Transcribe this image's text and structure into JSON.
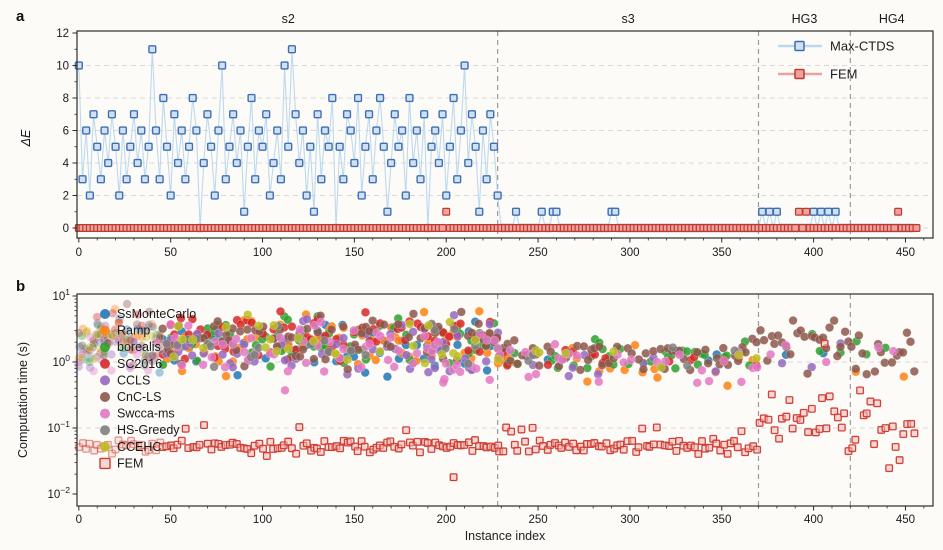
{
  "figure": {
    "panel_a_letter": "a",
    "panel_b_letter": "b",
    "xlabel": "Instance index"
  },
  "chart_data": [
    {
      "panel": "a",
      "type": "line",
      "ylabel": "ΔE",
      "xlim": [
        -1,
        465
      ],
      "ylim": [
        -0.6,
        12.4
      ],
      "xticks": [
        0,
        50,
        100,
        150,
        200,
        250,
        300,
        350,
        400,
        450
      ],
      "yticks": [
        0,
        2,
        4,
        6,
        8,
        10,
        12
      ],
      "grid": "horizontal-dashed",
      "sections": [
        {
          "label": "s2",
          "from": 0,
          "to": 228
        },
        {
          "label": "s3",
          "from": 228,
          "to": 370
        },
        {
          "label": "HG3",
          "from": 370,
          "to": 420
        },
        {
          "label": "HG4",
          "from": 420,
          "to": 465
        }
      ],
      "legend": {
        "position": "top-right",
        "items": [
          "Max-CTDS",
          "FEM"
        ]
      },
      "series": [
        {
          "name": "Max-CTDS",
          "marker": "square",
          "line_color": "#b9d7ee",
          "edge_color": "#3f6fb0",
          "fill_color": "#cfe1f3",
          "x_start": 0,
          "x_step": 2,
          "y": [
            10,
            3,
            6,
            2,
            7,
            5,
            3,
            6,
            4,
            7,
            5,
            2,
            6,
            3,
            5,
            7,
            4,
            6,
            3,
            5,
            11,
            6,
            3,
            8,
            5,
            2,
            7,
            4,
            6,
            3,
            5,
            8,
            6,
            0,
            4,
            7,
            5,
            2,
            6,
            10,
            3,
            5,
            7,
            4,
            6,
            1,
            5,
            8,
            3,
            6,
            5,
            7,
            2,
            4,
            6,
            3,
            10,
            5,
            11,
            7,
            4,
            6,
            2,
            5,
            1,
            7,
            3,
            6,
            5,
            8,
            0,
            5,
            3,
            7,
            6,
            4,
            8,
            2,
            5,
            7,
            3,
            6,
            8,
            5,
            1,
            4,
            7,
            5,
            6,
            2,
            8,
            4,
            6,
            3,
            7,
            0,
            5,
            6,
            4,
            7,
            2,
            5,
            8,
            3,
            6,
            10,
            4,
            7,
            5,
            1,
            6,
            3,
            7,
            5,
            2,
            0,
            0,
            0,
            0,
            1,
            0,
            0,
            0,
            0,
            0,
            0,
            1,
            0,
            0,
            1,
            1,
            0,
            0,
            0,
            0,
            0,
            0,
            0,
            0,
            0,
            0,
            0,
            0,
            0,
            0,
            1,
            1,
            0,
            0,
            0,
            0,
            0,
            0,
            0,
            0,
            0,
            0,
            0,
            0,
            0,
            0,
            0,
            0,
            0,
            0,
            0,
            0,
            0,
            0,
            0,
            0,
            0,
            0,
            0,
            0,
            0,
            0,
            0,
            0,
            0,
            0,
            0,
            0,
            0,
            0,
            0,
            1,
            0,
            1,
            0,
            1,
            0,
            0,
            0,
            0,
            0,
            0,
            0,
            0,
            0,
            1,
            0,
            1,
            0,
            1,
            0,
            1,
            0,
            0,
            0,
            0,
            0,
            0,
            0,
            0,
            0,
            0,
            0,
            0,
            0,
            0,
            0,
            0,
            0,
            0,
            0,
            0,
            0
          ]
        },
        {
          "name": "FEM",
          "marker": "square",
          "edge_color": "#c2382e",
          "fill_color": "#eba49d",
          "x_start": 0,
          "x_end": 456,
          "x_step": 2,
          "baseline": 0,
          "nonzero_points": [
            [
              200,
              1
            ],
            [
              392,
              1
            ],
            [
              396,
              1
            ],
            [
              446,
              1
            ]
          ]
        }
      ]
    },
    {
      "panel": "b",
      "type": "scatter",
      "ylabel": "Computation time (s)",
      "xlabel": "Instance index",
      "yscale": "log",
      "ylim_exp": [
        -2,
        1
      ],
      "ytick_exponents": [
        "1",
        "0",
        "−1",
        "−2"
      ],
      "xticks": [
        0,
        50,
        100,
        150,
        200,
        250,
        300,
        350,
        400,
        450
      ],
      "separators": [
        228,
        370,
        420
      ],
      "legend": {
        "position": "upper-left",
        "items": [
          "SsMonteCarlo",
          "Ramp",
          "borealis",
          "SC2016",
          "CCLS",
          "CnC-LS",
          "Swcca-ms",
          "HS-Greedy",
          "CCEHC",
          "FEM"
        ]
      },
      "series": [
        {
          "name": "SsMonteCarlo",
          "marker": "circle",
          "color": "#1f77b4",
          "x_step": 2,
          "clusters": [
            {
              "x0": 0,
              "x1": 228,
              "density": 0.65,
              "log10_center": 0.18,
              "log10_spread": 0.2
            },
            {
              "x0": 229,
              "x1": 370,
              "density": 0.08,
              "log10_center": 0.0,
              "log10_spread": 0.1
            },
            {
              "x0": 371,
              "x1": 420,
              "density": 0.02,
              "log10_center": 0.1,
              "log10_spread": 0.1
            },
            {
              "x0": 421,
              "x1": 456,
              "density": 0.03,
              "log10_center": 0.05,
              "log10_spread": 0.1
            }
          ]
        },
        {
          "name": "Ramp",
          "marker": "circle",
          "color": "#ff7f0e",
          "x_step": 2,
          "clusters": [
            {
              "x0": 0,
              "x1": 228,
              "density": 0.65,
              "log10_center": 0.3,
              "log10_spread": 0.22
            },
            {
              "x0": 229,
              "x1": 370,
              "density": 0.25,
              "log10_center": 0.03,
              "log10_spread": 0.14
            },
            {
              "x0": 371,
              "x1": 420,
              "density": 0.04,
              "log10_center": -0.05,
              "log10_spread": 0.25
            },
            {
              "x0": 421,
              "x1": 456,
              "density": 0.06,
              "log10_center": -0.25,
              "log10_spread": 0.25
            }
          ]
        },
        {
          "name": "borealis",
          "marker": "circle",
          "color": "#2ca02c",
          "x_step": 2,
          "clusters": [
            {
              "x0": 0,
              "x1": 228,
              "density": 0.65,
              "log10_center": 0.36,
              "log10_spread": 0.2
            },
            {
              "x0": 229,
              "x1": 370,
              "density": 0.45,
              "log10_center": 0.08,
              "log10_spread": 0.12
            },
            {
              "x0": 371,
              "x1": 420,
              "density": 0.05,
              "log10_center": 0.22,
              "log10_spread": 0.1
            },
            {
              "x0": 421,
              "x1": 456,
              "density": 0.12,
              "log10_center": 0.15,
              "log10_spread": 0.12
            }
          ]
        },
        {
          "name": "SC2016",
          "marker": "circle",
          "color": "#d62728",
          "x_step": 2,
          "clusters": [
            {
              "x0": 0,
              "x1": 228,
              "density": 0.65,
              "log10_center": 0.4,
              "log10_spread": 0.18
            },
            {
              "x0": 229,
              "x1": 370,
              "density": 0.12,
              "log10_center": 0.06,
              "log10_spread": 0.1
            },
            {
              "x0": 371,
              "x1": 420,
              "density": 0.04,
              "log10_center": 0.28,
              "log10_spread": 0.08
            },
            {
              "x0": 421,
              "x1": 456,
              "density": 0.08,
              "log10_center": 0.22,
              "log10_spread": 0.1
            }
          ]
        },
        {
          "name": "CCLS",
          "marker": "circle",
          "color": "#9467bd",
          "x_step": 2,
          "clusters": [
            {
              "x0": 0,
              "x1": 228,
              "density": 0.65,
              "log10_center": 0.2,
              "log10_spread": 0.2
            },
            {
              "x0": 229,
              "x1": 370,
              "density": 0.15,
              "log10_center": -0.02,
              "log10_spread": 0.12
            },
            {
              "x0": 371,
              "x1": 420,
              "density": 0.04,
              "log10_center": 0.02,
              "log10_spread": 0.1
            },
            {
              "x0": 421,
              "x1": 456,
              "density": 0.02,
              "log10_center": 0.1,
              "log10_spread": 0.1
            }
          ]
        },
        {
          "name": "CnC-LS",
          "marker": "circle",
          "color": "#8c564b",
          "x_step": 2,
          "clusters": [
            {
              "x0": 0,
              "x1": 228,
              "density": 0.7,
              "log10_center": 0.34,
              "log10_spread": 0.2
            },
            {
              "x0": 229,
              "x1": 370,
              "density": 0.85,
              "log10_center": 0.1,
              "log10_spread": 0.13
            },
            {
              "x0": 371,
              "x1": 420,
              "density": 1.0,
              "log10_center": 0.32,
              "log10_spread": 0.17
            },
            {
              "x0": 421,
              "x1": 456,
              "density": 0.95,
              "log10_center": 0.17,
              "log10_spread": 0.15
            }
          ]
        },
        {
          "name": "Swcca-ms",
          "marker": "circle",
          "color": "#e377c2",
          "x_step": 2,
          "outliers": [
            [
              199,
              -0.26
            ]
          ],
          "clusters": [
            {
              "x0": 0,
              "x1": 228,
              "density": 0.65,
              "log10_center": 0.14,
              "log10_spread": 0.22
            },
            {
              "x0": 229,
              "x1": 370,
              "density": 0.45,
              "log10_center": -0.03,
              "log10_spread": 0.15
            },
            {
              "x0": 371,
              "x1": 420,
              "density": 0.05,
              "log10_center": 0.08,
              "log10_spread": 0.12
            },
            {
              "x0": 421,
              "x1": 456,
              "density": 0.08,
              "log10_center": 0.15,
              "log10_spread": 0.1
            }
          ]
        },
        {
          "name": "HS-Greedy",
          "marker": "circle",
          "color": "#7f7f7f",
          "x_step": 2,
          "clusters": [
            {
              "x0": 0,
              "x1": 228,
              "density": 0.3,
              "log10_center": 0.26,
              "log10_spread": 0.18
            },
            {
              "x0": 229,
              "x1": 370,
              "density": 0.1,
              "log10_center": 0.08,
              "log10_spread": 0.1
            },
            {
              "x0": 371,
              "x1": 420,
              "density": 0.02,
              "log10_center": 0.1,
              "log10_spread": 0.1
            },
            {
              "x0": 421,
              "x1": 456,
              "density": 0.05,
              "log10_center": 0.02,
              "log10_spread": 0.1
            }
          ]
        },
        {
          "name": "CCEHC",
          "marker": "circle",
          "color": "#bcbd22",
          "x_step": 2,
          "clusters": [
            {
              "x0": 0,
              "x1": 228,
              "density": 0.3,
              "log10_center": 0.3,
              "log10_spread": 0.18
            },
            {
              "x0": 229,
              "x1": 370,
              "density": 0.1,
              "log10_center": 0.05,
              "log10_spread": 0.1
            },
            {
              "x0": 371,
              "x1": 420,
              "density": 0.02,
              "log10_center": 0.1,
              "log10_spread": 0.08
            },
            {
              "x0": 421,
              "x1": 456,
              "density": 0.02,
              "log10_center": 0.05,
              "log10_spread": 0.08
            }
          ]
        },
        {
          "name": "FEM",
          "marker": "square",
          "edge_color": "#cf3a30",
          "fill_color": "#f3b9b4",
          "x_step": 2,
          "outliers": [
            [
              204,
              -1.745
            ],
            [
              406,
              0.28
            ]
          ],
          "clusters": [
            {
              "x0": 0,
              "x1": 228,
              "density": 1.0,
              "log10_center": -1.28,
              "log10_spread": 0.05,
              "spike_density": 0.06,
              "spike_log10_center": -1.02
            },
            {
              "x0": 229,
              "x1": 370,
              "density": 1.0,
              "log10_center": -1.27,
              "log10_spread": 0.06,
              "spike_density": 0.08,
              "spike_log10_center": -1.03
            },
            {
              "x0": 371,
              "x1": 420,
              "density": 1.0,
              "log10_center": -0.88,
              "log10_spread": 0.3
            },
            {
              "x0": 421,
              "x1": 456,
              "density": 1.0,
              "log10_center": -1.02,
              "log10_spread": 0.26
            }
          ]
        }
      ]
    }
  ]
}
